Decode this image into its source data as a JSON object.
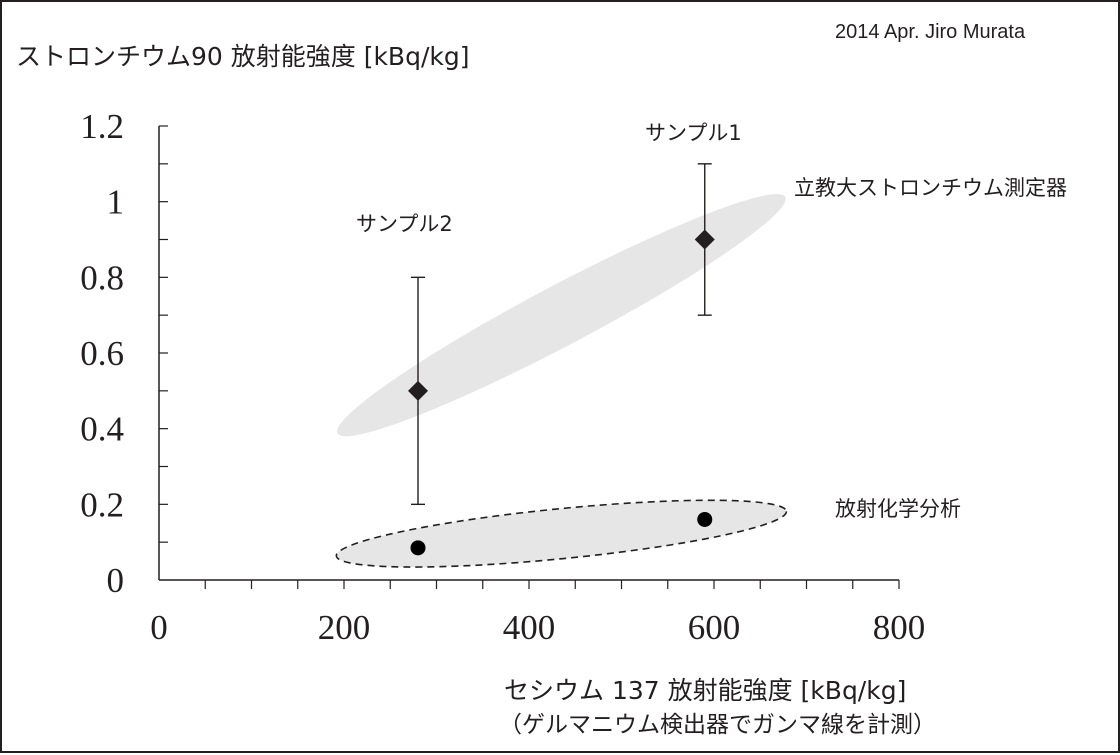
{
  "chart_data": {
    "type": "scatter",
    "credit": "2014 Apr. Jiro Murata",
    "ylabel": "ストロンチウム90 放射能強度 [kBq/kg]",
    "xlabel": "セシウム 137 放射能強度 [kBq/kg]",
    "xlabel_sub": "（ゲルマニウム検出器でガンマ線を計測）",
    "xlim": [
      0,
      800
    ],
    "ylim": [
      0,
      1.2
    ],
    "x_ticks": [
      "0",
      "200",
      "400",
      "600",
      "800"
    ],
    "y_ticks": [
      "0",
      "0.2",
      "0.4",
      "0.6",
      "0.8",
      "1",
      "1.2"
    ],
    "grid": false,
    "series": [
      {
        "name": "立教大ストロンチウム測定器",
        "marker": "diamond",
        "color": "#231f20",
        "x": [
          280,
          590
        ],
        "y": [
          0.5,
          0.9
        ],
        "error_low": [
          0.2,
          0.7
        ],
        "error_high": [
          0.8,
          1.1
        ]
      },
      {
        "name": "放射化学分析",
        "marker": "circle",
        "color": "#000000",
        "x": [
          280,
          590
        ],
        "y": [
          0.085,
          0.16
        ]
      }
    ],
    "annotations": [
      {
        "text": "サンプル1",
        "x": 590
      },
      {
        "text": "サンプル2",
        "x": 280
      }
    ],
    "colors": {
      "ellipse_fill": "#e6e6e6",
      "ink": "#231f20"
    }
  }
}
